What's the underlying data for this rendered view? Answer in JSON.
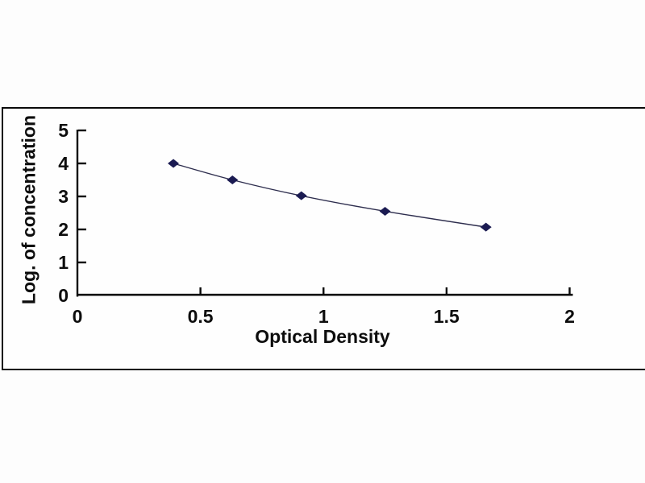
{
  "chart_data": {
    "type": "line",
    "title": "",
    "xlabel": "Optical Density",
    "ylabel": "Log. of concentration",
    "x": [
      0.39,
      0.63,
      0.91,
      1.25,
      1.66
    ],
    "y": [
      4.0,
      3.5,
      3.02,
      2.55,
      2.07
    ],
    "xlim": [
      0,
      2
    ],
    "ylim": [
      0,
      5
    ],
    "x_ticks": [
      0,
      0.5,
      1,
      1.5,
      2
    ],
    "x_tick_labels": [
      "0",
      "0.5",
      "1",
      "1.5",
      "2"
    ],
    "y_ticks": [
      0,
      1,
      2,
      3,
      4,
      5
    ],
    "y_tick_labels": [
      "0",
      "1",
      "2",
      "3",
      "4",
      "5"
    ],
    "grid": false,
    "legend": null,
    "marker": "diamond",
    "marker_color": "#1b1b52",
    "line_color": "#2e2e4e",
    "axis_color": "#0a0a0a",
    "frame_color": "#0a0a0a"
  }
}
